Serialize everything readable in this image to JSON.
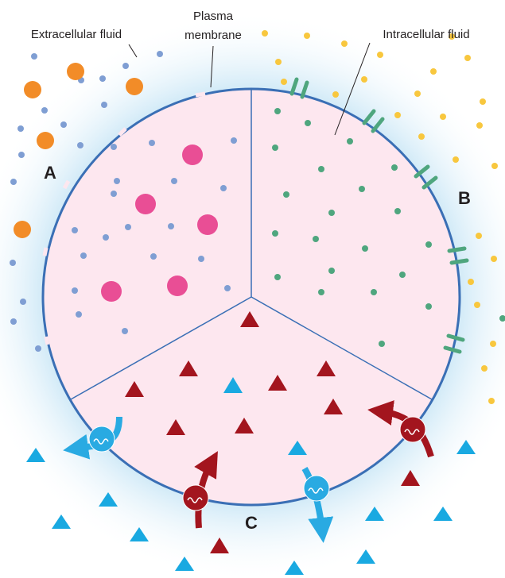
{
  "labels": {
    "extracellular": "Extracellular fluid",
    "plasma_line1": "Plasma",
    "plasma_line2": "membrane",
    "intracellular": "Intracellular fluid",
    "sector_a": "A",
    "sector_b": "B",
    "sector_c": "C"
  },
  "colors": {
    "membrane": "#3a6fb5",
    "cytoplasm": "#fde7ef",
    "halo": "#cfe9f7",
    "small_blue_dot": "#7f9ed3",
    "orange_particle": "#f28c28",
    "magenta_particle": "#e94e95",
    "green_dot": "#4fa67e",
    "yellow_dot": "#f8c73e",
    "red_triangle": "#a3151e",
    "cyan_triangle": "#19a9e1",
    "carrier_blue": "#29aae2",
    "carrier_red": "#a3151e"
  },
  "icons": [
    "membrane-pore-icon",
    "membrane-channel-icon",
    "carrier-protein-icon",
    "transport-arrow-icon"
  ]
}
